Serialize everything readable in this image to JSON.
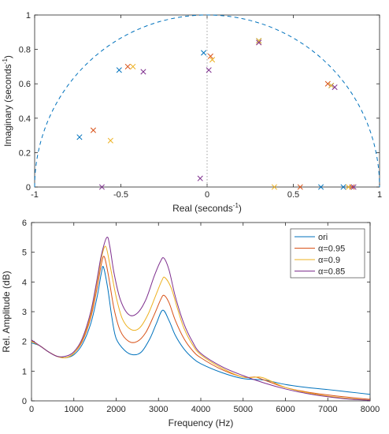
{
  "chart_data": [
    {
      "type": "scatter",
      "xlabel_main": "Real (seconds",
      "xlabel_sup": "-1",
      "xlabel_end": ")",
      "ylabel_main": "Imaginary (seconds",
      "ylabel_sup": "-1",
      "ylabel_end": ")",
      "xlim": [
        -1,
        1
      ],
      "ylim": [
        0,
        1
      ],
      "xticks": [
        -1,
        -0.5,
        0,
        0.5,
        1
      ],
      "xtick_labels": [
        "-1",
        "-0.5",
        "0",
        "0.5",
        "1"
      ],
      "yticks": [
        0,
        0.2,
        0.4,
        0.6,
        0.8,
        1
      ],
      "ytick_labels": [
        "0",
        "0.2",
        "0.4",
        "0.6",
        "0.8",
        "1"
      ],
      "grid": false,
      "unit_circle": "dashed",
      "colors": [
        "#0072BD",
        "#D95319",
        "#EDB120",
        "#7E2F8E"
      ],
      "marker": "x",
      "series": [
        {
          "color": "#0072BD",
          "points": [
            [
              -0.74,
              0.29
            ],
            [
              -0.51,
              0.68
            ],
            [
              -0.02,
              0.78
            ],
            [
              0.3,
              0.85
            ],
            [
              0.72,
              0.59
            ],
            [
              0.66,
              0.0
            ],
            [
              0.79,
              0.0
            ]
          ]
        },
        {
          "color": "#D95319",
          "points": [
            [
              -0.66,
              0.33
            ],
            [
              -0.46,
              0.7
            ],
            [
              0.02,
              0.76
            ],
            [
              0.3,
              0.84
            ],
            [
              0.7,
              0.6
            ],
            [
              0.54,
              0.0
            ],
            [
              0.84,
              0.0
            ]
          ]
        },
        {
          "color": "#EDB120",
          "points": [
            [
              -0.56,
              0.27
            ],
            [
              -0.43,
              0.7
            ],
            [
              0.03,
              0.74
            ],
            [
              0.3,
              0.85
            ],
            [
              0.72,
              0.59
            ],
            [
              0.39,
              0.0
            ],
            [
              0.82,
              0.0
            ]
          ]
        },
        {
          "color": "#7E2F8E",
          "points": [
            [
              -0.61,
              0.0
            ],
            [
              -0.37,
              0.67
            ],
            [
              0.01,
              0.68
            ],
            [
              -0.04,
              0.05
            ],
            [
              0.3,
              0.84
            ],
            [
              0.74,
              0.58
            ],
            [
              0.85,
              0.0
            ]
          ]
        }
      ]
    },
    {
      "type": "line",
      "xlabel": "Frequency (Hz)",
      "ylabel": "Rel. Amplitude (dB)",
      "xlim": [
        0,
        8000
      ],
      "ylim": [
        0,
        6
      ],
      "xticks": [
        0,
        1000,
        2000,
        3000,
        4000,
        5000,
        6000,
        7000,
        8000
      ],
      "xtick_labels": [
        "0",
        "1000",
        "2000",
        "3000",
        "4000",
        "5000",
        "6000",
        "7000",
        "8000"
      ],
      "yticks": [
        0,
        1,
        2,
        3,
        4,
        5,
        6
      ],
      "ytick_labels": [
        "0",
        "1",
        "2",
        "3",
        "4",
        "5",
        "6"
      ],
      "grid": false,
      "legend_placement": "top-right",
      "series": [
        {
          "name": "ori",
          "color": "#0072BD",
          "x": [
            0,
            200,
            400,
            600,
            800,
            1000,
            1200,
            1400,
            1550,
            1650,
            1700,
            1800,
            1900,
            2000,
            2200,
            2400,
            2600,
            2800,
            2950,
            3100,
            3250,
            3400,
            3600,
            3800,
            4000,
            4500,
            5000,
            5500,
            6000,
            6500,
            7000,
            7500,
            8000
          ],
          "y": [
            1.95,
            1.85,
            1.65,
            1.5,
            1.45,
            1.55,
            1.9,
            2.6,
            3.5,
            4.3,
            4.5,
            3.8,
            2.8,
            2.1,
            1.7,
            1.55,
            1.65,
            2.1,
            2.6,
            3.05,
            2.7,
            2.2,
            1.75,
            1.45,
            1.25,
            0.95,
            0.75,
            0.7,
            0.55,
            0.45,
            0.38,
            0.3,
            0.22
          ]
        },
        {
          "name": "α=0.95",
          "color": "#D95319",
          "x": [
            0,
            200,
            400,
            600,
            800,
            1000,
            1200,
            1400,
            1550,
            1650,
            1720,
            1820,
            1950,
            2100,
            2300,
            2500,
            2700,
            2900,
            3050,
            3130,
            3250,
            3400,
            3600,
            3800,
            4000,
            4500,
            5000,
            5300,
            5500,
            6000,
            6500,
            7000,
            7500,
            8000
          ],
          "y": [
            2.0,
            1.85,
            1.65,
            1.5,
            1.45,
            1.6,
            2.0,
            2.8,
            3.8,
            4.6,
            4.85,
            4.2,
            3.1,
            2.35,
            2.0,
            2.0,
            2.3,
            2.9,
            3.4,
            3.55,
            3.3,
            2.7,
            2.1,
            1.7,
            1.45,
            1.05,
            0.8,
            0.8,
            0.7,
            0.45,
            0.3,
            0.2,
            0.12,
            0.05
          ]
        },
        {
          "name": "α=0.9",
          "color": "#EDB120",
          "x": [
            0,
            200,
            400,
            600,
            800,
            1000,
            1200,
            1400,
            1550,
            1650,
            1750,
            1850,
            2000,
            2150,
            2350,
            2550,
            2750,
            2950,
            3080,
            3150,
            3300,
            3450,
            3600,
            3800,
            4000,
            4500,
            5000,
            5400,
            5600,
            6000,
            6500,
            7000,
            7500,
            8000
          ],
          "y": [
            2.0,
            1.85,
            1.65,
            1.5,
            1.45,
            1.6,
            2.05,
            2.9,
            4.0,
            4.8,
            5.2,
            4.6,
            3.5,
            2.75,
            2.4,
            2.45,
            2.9,
            3.6,
            4.05,
            4.15,
            3.8,
            3.1,
            2.45,
            1.9,
            1.55,
            1.1,
            0.8,
            0.8,
            0.7,
            0.45,
            0.28,
            0.16,
            0.08,
            0.02
          ]
        },
        {
          "name": "α=0.85",
          "color": "#7E2F8E",
          "x": [
            0,
            200,
            400,
            600,
            800,
            1000,
            1200,
            1400,
            1550,
            1650,
            1780,
            1850,
            1950,
            2100,
            2300,
            2500,
            2700,
            2900,
            3050,
            3130,
            3250,
            3400,
            3600,
            3800,
            4000,
            4500,
            5000,
            5500,
            6000,
            6500,
            7000,
            7500,
            8000
          ],
          "y": [
            2.05,
            1.85,
            1.65,
            1.5,
            1.5,
            1.65,
            2.1,
            3.0,
            4.1,
            4.9,
            5.5,
            5.2,
            4.3,
            3.4,
            2.9,
            2.95,
            3.4,
            4.2,
            4.7,
            4.8,
            4.4,
            3.5,
            2.6,
            2.0,
            1.6,
            1.15,
            0.85,
            0.6,
            0.4,
            0.25,
            0.14,
            0.06,
            0.02
          ]
        }
      ]
    }
  ]
}
